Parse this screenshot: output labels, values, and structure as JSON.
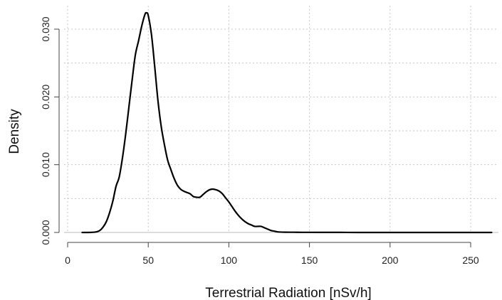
{
  "chart_data": {
    "type": "line",
    "title": "",
    "xlabel": "Terrestrial Radiation [nSv/h]",
    "ylabel": "Density",
    "xlim": [
      0,
      265
    ],
    "ylim": [
      0,
      0.0325
    ],
    "x_ticks": [
      0,
      50,
      100,
      150,
      200,
      250
    ],
    "x_tick_labels": [
      "0",
      "50",
      "100",
      "150",
      "200",
      "250"
    ],
    "y_ticks": [
      0,
      0.01,
      0.02,
      0.03
    ],
    "y_tick_labels": [
      "0.000",
      "0.010",
      "0.020",
      "0.030"
    ],
    "y_minor_grid": [
      0.005,
      0.015,
      0.025
    ],
    "grid": true,
    "grid_style": "dotted",
    "line_color": "#000000",
    "grid_color": "#c8c8c8",
    "series": [
      {
        "x": [
          9,
          15,
          18,
          20,
          22,
          24,
          26,
          28,
          30,
          32,
          34,
          36,
          38,
          40,
          42,
          44,
          46,
          48,
          49,
          50,
          52,
          54,
          56,
          58,
          60,
          62,
          64,
          66,
          68,
          70,
          72,
          74,
          76,
          78,
          80,
          82,
          84,
          86,
          88,
          90,
          92,
          94,
          96,
          98,
          100,
          102,
          104,
          106,
          108,
          110,
          112,
          114,
          116,
          118,
          120,
          122,
          124,
          126,
          128,
          130,
          132,
          135,
          140,
          145,
          150,
          160,
          170,
          180,
          200,
          220,
          240,
          263
        ],
        "y": [
          0.0,
          2e-05,
          0.0001,
          0.0003,
          0.0008,
          0.0016,
          0.0029,
          0.0046,
          0.0068,
          0.0082,
          0.011,
          0.0145,
          0.0185,
          0.0225,
          0.0262,
          0.0283,
          0.0305,
          0.0322,
          0.0324,
          0.032,
          0.0292,
          0.0245,
          0.0195,
          0.0157,
          0.013,
          0.0107,
          0.0093,
          0.008,
          0.007,
          0.0064,
          0.0061,
          0.0059,
          0.0057,
          0.0053,
          0.0052,
          0.0052,
          0.0056,
          0.006,
          0.0063,
          0.0064,
          0.0063,
          0.0061,
          0.0057,
          0.0051,
          0.0045,
          0.0038,
          0.0031,
          0.0025,
          0.002,
          0.0016,
          0.0013,
          0.0011,
          0.0009,
          0.0009,
          0.0009,
          0.0007,
          0.0005,
          0.0003,
          0.0002,
          0.0001,
          6e-05,
          4e-05,
          3e-05,
          2e-05,
          2e-05,
          1e-05,
          1e-05,
          0.0,
          0.0,
          0.0,
          0.0,
          0.0
        ]
      }
    ]
  }
}
